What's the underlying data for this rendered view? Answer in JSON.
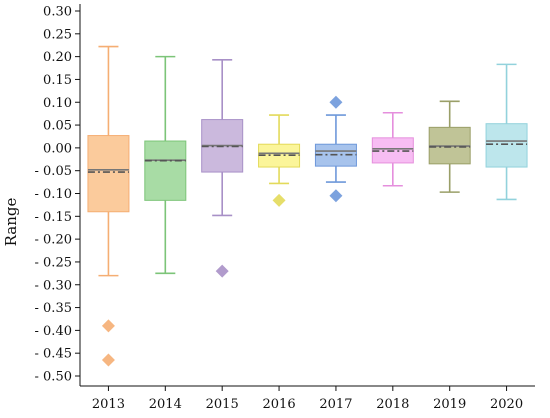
{
  "chart_data": {
    "type": "box",
    "title": "",
    "xlabel": "",
    "ylabel": "Range",
    "ylim": [
      -0.5,
      0.3
    ],
    "ytick_step": 0.05,
    "grid": false,
    "legend": "none",
    "median_line_color": "#777777",
    "mean_line_color": "#555555",
    "series": [
      {
        "category": "2013",
        "color": "#FBCB9C",
        "edge": "#F5AE73",
        "whisker_low": -0.28,
        "q1": -0.14,
        "median": -0.048,
        "mean": -0.053,
        "q3": 0.027,
        "whisker_high": 0.222,
        "outliers": [
          -0.39,
          -0.465
        ]
      },
      {
        "category": "2014",
        "color": "#A8DCA5",
        "edge": "#7CC478",
        "whisker_low": -0.275,
        "q1": -0.115,
        "median": -0.027,
        "mean": -0.028,
        "q3": 0.015,
        "whisker_high": 0.2,
        "outliers": []
      },
      {
        "category": "2015",
        "color": "#CBB9DD",
        "edge": "#A890C7",
        "whisker_low": -0.148,
        "q1": -0.053,
        "median": 0.005,
        "mean": 0.003,
        "q3": 0.062,
        "whisker_high": 0.193,
        "outliers": [
          -0.27
        ]
      },
      {
        "category": "2016",
        "color": "#FBF59A",
        "edge": "#E3DA5A",
        "whisker_low": -0.078,
        "q1": -0.042,
        "median": -0.012,
        "mean": -0.016,
        "q3": 0.008,
        "whisker_high": 0.072,
        "outliers": [
          -0.115
        ]
      },
      {
        "category": "2017",
        "color": "#A7C3EC",
        "edge": "#6E98DA",
        "whisker_low": -0.075,
        "q1": -0.04,
        "median": -0.007,
        "mean": -0.015,
        "q3": 0.008,
        "whisker_high": 0.072,
        "outliers": [
          0.1,
          -0.105
        ]
      },
      {
        "category": "2018",
        "color": "#F7BDF3",
        "edge": "#E58FDD",
        "whisker_low": -0.083,
        "q1": -0.033,
        "median": -0.002,
        "mean": -0.007,
        "q3": 0.022,
        "whisker_high": 0.077,
        "outliers": []
      },
      {
        "category": "2019",
        "color": "#C0C497",
        "edge": "#9A9F68",
        "whisker_low": -0.097,
        "q1": -0.035,
        "median": 0.004,
        "mean": 0.002,
        "q3": 0.045,
        "whisker_high": 0.102,
        "outliers": []
      },
      {
        "category": "2020",
        "color": "#BDE6EC",
        "edge": "#92D2DC",
        "whisker_low": -0.113,
        "q1": -0.042,
        "median": 0.015,
        "mean": 0.008,
        "q3": 0.053,
        "whisker_high": 0.183,
        "outliers": []
      }
    ]
  }
}
